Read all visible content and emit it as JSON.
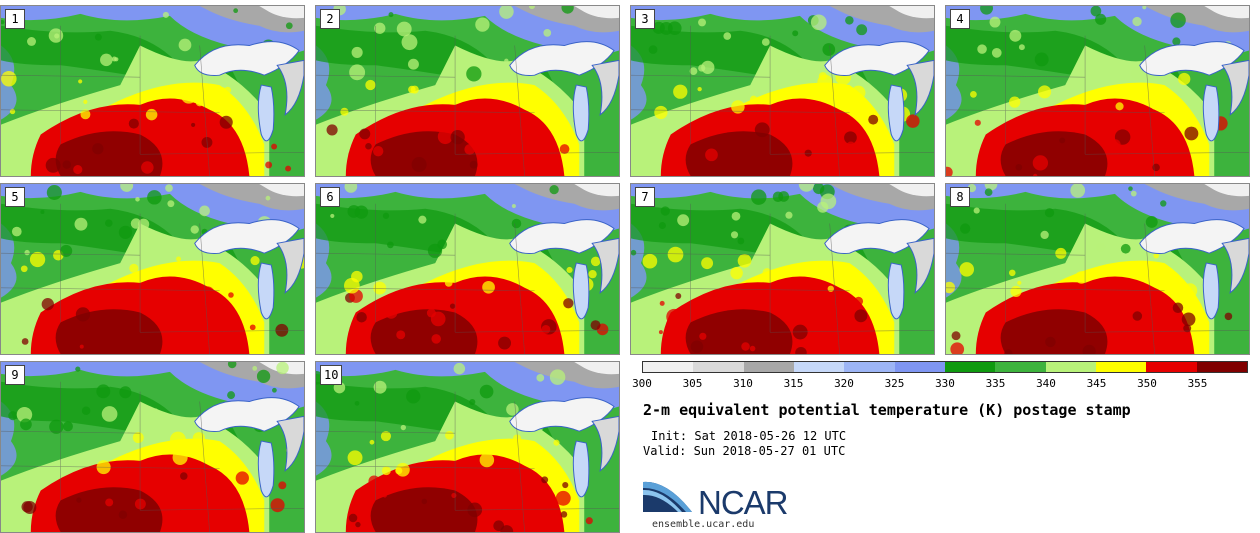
{
  "panels": [
    {
      "label": "1"
    },
    {
      "label": "2"
    },
    {
      "label": "3"
    },
    {
      "label": "4"
    },
    {
      "label": "5"
    },
    {
      "label": "6"
    },
    {
      "label": "7"
    },
    {
      "label": "8"
    },
    {
      "label": "9"
    },
    {
      "label": "10"
    }
  ],
  "colorbar": {
    "colors": [
      "#f0f0f0",
      "#d9d9d9",
      "#a8a8a8",
      "#c6d8f8",
      "#9db5f5",
      "#7f96f2",
      "#0f9a0f",
      "#3db33d",
      "#b8f27a",
      "#ffff00",
      "#e60000",
      "#800000"
    ],
    "tick_labels": [
      "300",
      "305",
      "310",
      "315",
      "320",
      "325",
      "330",
      "335",
      "340",
      "345",
      "350",
      "355"
    ]
  },
  "title": "2-m equivalent potential temperature (K) postage stamp",
  "init": "Init: Sat 2018-05-26 12 UTC",
  "valid": "Valid: Sun 2018-05-27 01 UTC",
  "logo": {
    "text": "NCAR",
    "url": "ensemble.ucar.edu",
    "color": "#1b3a6b"
  }
}
